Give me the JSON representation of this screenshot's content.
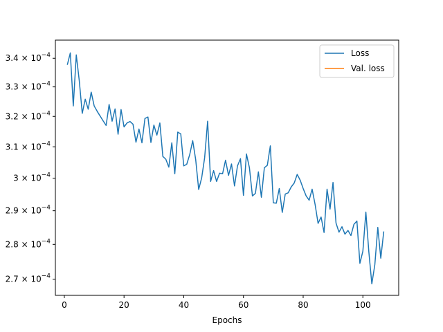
{
  "chart_data": {
    "type": "line",
    "title": "",
    "xlabel": "Epochs",
    "ylabel": "",
    "y_scale": "log",
    "xlim": [
      -3,
      112
    ],
    "ylim": [
      0.0002655,
      0.0003465
    ],
    "x_ticks": [
      0,
      20,
      40,
      60,
      80,
      100
    ],
    "y_ticks": [
      {
        "value": 0.00027,
        "base": "2.7",
        "exp": "−4"
      },
      {
        "value": 0.00028,
        "base": "2.8",
        "exp": "−4"
      },
      {
        "value": 0.00029,
        "base": "2.9",
        "exp": "−4"
      },
      {
        "value": 0.0003,
        "base": "3",
        "exp": "−4"
      },
      {
        "value": 0.00031,
        "base": "3.1",
        "exp": "−4"
      },
      {
        "value": 0.00032,
        "base": "3.2",
        "exp": "−4"
      },
      {
        "value": 0.00033,
        "base": "3.3",
        "exp": "−4"
      },
      {
        "value": 0.00034,
        "base": "3.4",
        "exp": "−4"
      }
    ],
    "tick_mult": "× 10",
    "grid": false,
    "legend_position": "top-right",
    "series": [
      {
        "name": "Loss",
        "color": "#1f77b4",
        "x": [
          1,
          2,
          3,
          4,
          5,
          6,
          7,
          8,
          9,
          10,
          11,
          12,
          13,
          14,
          15,
          16,
          17,
          18,
          19,
          20,
          21,
          22,
          23,
          24,
          25,
          26,
          27,
          28,
          29,
          30,
          31,
          32,
          33,
          34,
          35,
          36,
          37,
          38,
          39,
          40,
          41,
          42,
          43,
          44,
          45,
          46,
          47,
          48,
          49,
          50,
          51,
          52,
          53,
          54,
          55,
          56,
          57,
          58,
          59,
          60,
          61,
          62,
          63,
          64,
          65,
          66,
          67,
          68,
          69,
          70,
          71,
          72,
          73,
          74,
          75,
          76,
          77,
          78,
          79,
          80,
          81,
          82,
          83,
          84,
          85,
          86,
          87,
          88,
          89,
          90,
          91,
          92,
          93,
          94,
          95,
          96,
          97,
          98,
          99,
          100,
          101,
          102,
          103,
          104,
          105,
          106,
          107
        ],
        "y": [
          0.0003377,
          0.0003419,
          0.0003235,
          0.0003412,
          0.0003322,
          0.000321,
          0.0003258,
          0.0003224,
          0.0003282,
          0.0003235,
          0.0003217,
          0.0003201,
          0.0003185,
          0.000317,
          0.000324,
          0.0003184,
          0.0003225,
          0.0003141,
          0.0003223,
          0.0003165,
          0.0003178,
          0.0003183,
          0.0003174,
          0.0003115,
          0.0003158,
          0.0003113,
          0.0003193,
          0.0003198,
          0.0003114,
          0.0003171,
          0.0003138,
          0.0003178,
          0.0003069,
          0.000306,
          0.0003035,
          0.0003113,
          0.0003014,
          0.0003148,
          0.0003142,
          0.0003039,
          0.0003044,
          0.0003075,
          0.000312,
          0.0003059,
          0.0002965,
          0.0003001,
          0.0003065,
          0.0003184,
          0.000299,
          0.0003024,
          0.000299,
          0.0003016,
          0.0003014,
          0.0003057,
          0.0003009,
          0.0003045,
          0.0002976,
          0.0003039,
          0.0003062,
          0.0002947,
          0.0003077,
          0.0003033,
          0.0002945,
          0.0002953,
          0.000302,
          0.0002941,
          0.0003033,
          0.0003041,
          0.0003103,
          0.0002924,
          0.0002923,
          0.0002968,
          0.0002895,
          0.0002951,
          0.0002955,
          0.0002973,
          0.0002985,
          0.0003012,
          0.0002994,
          0.0002968,
          0.0002945,
          0.0002932,
          0.0002966,
          0.0002919,
          0.0002862,
          0.0002881,
          0.0002835,
          0.0002966,
          0.0002905,
          0.0002987,
          0.0002863,
          0.0002836,
          0.0002852,
          0.000283,
          0.0002841,
          0.0002826,
          0.0002859,
          0.0002869,
          0.0002745,
          0.000278,
          0.0002896,
          0.0002778,
          0.0002687,
          0.0002741,
          0.000285,
          0.000276,
          0.0002838
        ]
      },
      {
        "name": "Val. loss",
        "color": "#ff7f0e",
        "x": [],
        "y": []
      }
    ]
  }
}
